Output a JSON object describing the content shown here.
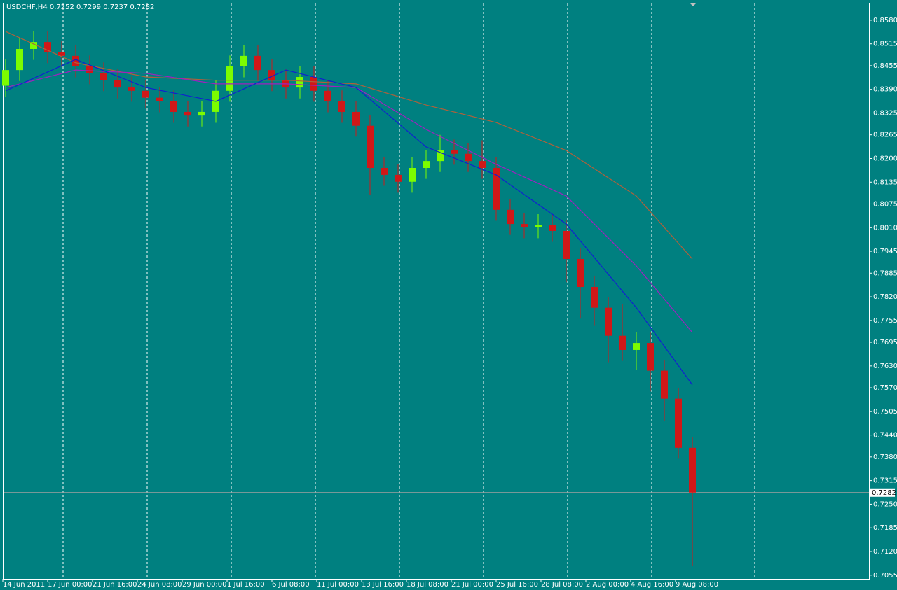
{
  "chart_data": {
    "type": "candlestick",
    "title": "USDCHF,H4  0.7252 0.7299 0.7237 0.7282",
    "time_labels": [
      "14 Jun 2011",
      "17 Jun 00:00",
      "21 Jun 16:00",
      "24 Jun 08:00",
      "29 Jun 00:00",
      "1 Jul 16:00",
      "6 Jul 08:00",
      "11 Jul 00:00",
      "13 Jul 16:00",
      "18 Jul 08:00",
      "21 Jul 00:00",
      "25 Jul 16:00",
      "28 Jul 08:00",
      "2 Aug 00:00",
      "4 Aug 16:00",
      "9 Aug 08:00"
    ],
    "open": [
      0.84,
      0.8443,
      0.8501,
      0.852,
      0.8492,
      0.8482,
      0.8453,
      0.8434,
      0.8415,
      0.8395,
      0.8386,
      0.8367,
      0.8357,
      0.8328,
      0.8318,
      0.8328,
      0.8386,
      0.8453,
      0.8482,
      0.8443,
      0.8415,
      0.8395,
      0.8424,
      0.8386,
      0.8357,
      0.8328,
      0.829,
      0.8174,
      0.8155,
      0.8136,
      0.8174,
      0.8193,
      0.8222,
      0.8213,
      0.8193,
      0.8174,
      0.8059,
      0.802,
      0.8011,
      0.8017,
      0.8001,
      0.7924,
      0.7847,
      0.779,
      0.7713,
      0.7674,
      0.7693,
      0.7617,
      0.754,
      0.7405
    ],
    "high": [
      0.8473,
      0.8531,
      0.855,
      0.855,
      0.8522,
      0.8512,
      0.8483,
      0.8464,
      0.8445,
      0.8425,
      0.8416,
      0.8397,
      0.8387,
      0.8358,
      0.8358,
      0.8416,
      0.8483,
      0.8512,
      0.8512,
      0.8473,
      0.8445,
      0.8454,
      0.8454,
      0.8416,
      0.8387,
      0.8358,
      0.832,
      0.8204,
      0.8185,
      0.8204,
      0.8223,
      0.8265,
      0.8252,
      0.8243,
      0.825,
      0.8204,
      0.8089,
      0.805,
      0.8047,
      0.8047,
      0.8031,
      0.7954,
      0.7877,
      0.782,
      0.78,
      0.7723,
      0.7723,
      0.7647,
      0.757,
      0.7435
    ],
    "low": [
      0.837,
      0.8413,
      0.8471,
      0.8462,
      0.8452,
      0.8423,
      0.8404,
      0.8385,
      0.8365,
      0.8356,
      0.8337,
      0.8327,
      0.8298,
      0.8288,
      0.8288,
      0.8298,
      0.8356,
      0.8423,
      0.8413,
      0.8385,
      0.8365,
      0.8365,
      0.8356,
      0.8327,
      0.8298,
      0.826,
      0.81,
      0.8125,
      0.8106,
      0.8106,
      0.8144,
      0.8163,
      0.8183,
      0.8163,
      0.8144,
      0.8029,
      0.799,
      0.7981,
      0.7981,
      0.7971,
      0.786,
      0.776,
      0.774,
      0.764,
      0.7644,
      0.762,
      0.756,
      0.748,
      0.7375,
      0.708
    ],
    "close": [
      0.8443,
      0.8501,
      0.852,
      0.8492,
      0.8482,
      0.8453,
      0.8434,
      0.8415,
      0.8395,
      0.8386,
      0.8367,
      0.8357,
      0.8328,
      0.8318,
      0.8328,
      0.8386,
      0.8453,
      0.8482,
      0.8443,
      0.8415,
      0.8395,
      0.8424,
      0.8386,
      0.8357,
      0.8328,
      0.829,
      0.8174,
      0.8155,
      0.8136,
      0.8174,
      0.8193,
      0.8222,
      0.8213,
      0.8193,
      0.8174,
      0.8059,
      0.802,
      0.8011,
      0.8017,
      0.8001,
      0.7924,
      0.7847,
      0.779,
      0.7713,
      0.7674,
      0.7693,
      0.7617,
      0.754,
      0.7405,
      0.7282
    ],
    "up_color": "#7cfc00",
    "down_color": "#d01818",
    "overlays": [
      {
        "color": "#b0603a",
        "x": [
          0,
          5,
          10,
          15,
          20,
          25,
          30,
          35,
          40,
          45,
          49
        ],
        "values": [
          0.8549,
          0.8463,
          0.8424,
          0.8415,
          0.8415,
          0.8405,
          0.8347,
          0.8299,
          0.8222,
          0.8097,
          0.7924
        ]
      },
      {
        "color": "#a020c0",
        "x": [
          0,
          5,
          10,
          15,
          20,
          25,
          30,
          35,
          40,
          45,
          49
        ],
        "values": [
          0.8395,
          0.8443,
          0.8434,
          0.8405,
          0.8405,
          0.8395,
          0.828,
          0.8184,
          0.8097,
          0.7905,
          0.7722
        ]
      },
      {
        "color": "#1020d0",
        "x": [
          0,
          5,
          10,
          15,
          20,
          25,
          30,
          35,
          40,
          45,
          49
        ],
        "values": [
          0.8386,
          0.8472,
          0.8395,
          0.8357,
          0.8443,
          0.8395,
          0.8232,
          0.8155,
          0.802,
          0.779,
          0.7578
        ]
      }
    ],
    "last_price": 0.7282,
    "ylim": [
      0.7045,
      0.8626
    ],
    "yticks": [
      {
        "value": 0.858,
        "label": "0.8580"
      },
      0.8515,
      0.8455,
      {
        "value": 0.839,
        "label": "0.8390"
      },
      0.8325,
      0.8265,
      {
        "value": 0.82,
        "label": "0.8200"
      },
      0.8135,
      0.8075,
      {
        "value": 0.801,
        "label": "0.8010"
      },
      0.7945,
      0.7885,
      {
        "value": 0.782,
        "label": "0.7820"
      },
      0.7755,
      0.7695,
      {
        "value": 0.763,
        "label": "0.7630"
      },
      {
        "value": 0.757,
        "label": "0.7570"
      },
      0.7505,
      {
        "value": 0.744,
        "label": "0.7440"
      },
      {
        "value": 0.738,
        "label": "0.7380"
      },
      0.7315,
      {
        "value": 0.725,
        "label": "0.7250"
      },
      0.7185,
      {
        "value": 0.712,
        "label": "0.7120"
      },
      0.7055
    ]
  }
}
